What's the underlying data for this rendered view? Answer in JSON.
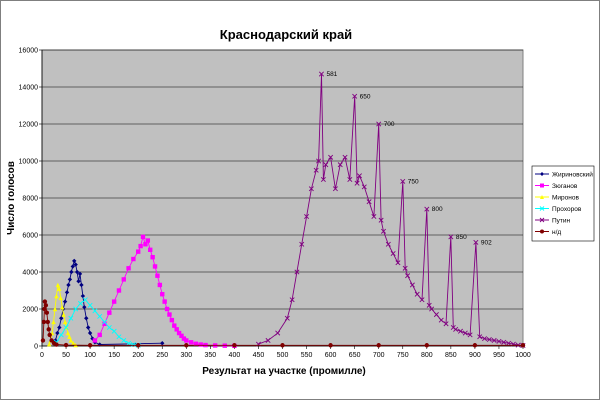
{
  "chart_data": {
    "type": "line",
    "title": "Краснодарский край",
    "xlabel": "Результат на участке (промилле)",
    "ylabel": "Число голосов",
    "xlim": [
      0,
      1000
    ],
    "ylim": [
      0,
      16000
    ],
    "x_ticks": [
      0,
      50,
      100,
      150,
      200,
      250,
      300,
      350,
      400,
      450,
      500,
      550,
      600,
      650,
      700,
      750,
      800,
      850,
      900,
      950,
      1000
    ],
    "y_ticks": [
      0,
      2000,
      4000,
      6000,
      8000,
      10000,
      12000,
      14000,
      16000
    ],
    "grid": "horizontal",
    "background_color": "#c0c0c0",
    "legend_position": "right",
    "series": [
      {
        "name": "Жириновский",
        "color": "#000080",
        "marker": "diamond",
        "points": [
          [
            28,
            300
          ],
          [
            32,
            700
          ],
          [
            36,
            1000
          ],
          [
            40,
            1500
          ],
          [
            44,
            2000
          ],
          [
            48,
            2400
          ],
          [
            52,
            2900
          ],
          [
            55,
            3300
          ],
          [
            58,
            3600
          ],
          [
            61,
            4000
          ],
          [
            64,
            4300
          ],
          [
            67,
            4600
          ],
          [
            70,
            4400
          ],
          [
            73,
            4000
          ],
          [
            76,
            3500
          ],
          [
            79,
            3900
          ],
          [
            82,
            3300
          ],
          [
            85,
            2700
          ],
          [
            88,
            2100
          ],
          [
            92,
            1500
          ],
          [
            96,
            1000
          ],
          [
            100,
            700
          ],
          [
            105,
            400
          ],
          [
            110,
            200
          ],
          [
            120,
            80
          ],
          [
            250,
            150
          ]
        ]
      },
      {
        "name": "Зюганов",
        "color": "#ff00ff",
        "marker": "square",
        "points": [
          [
            110,
            300
          ],
          [
            120,
            600
          ],
          [
            130,
            1200
          ],
          [
            140,
            1800
          ],
          [
            150,
            2400
          ],
          [
            160,
            3000
          ],
          [
            170,
            3600
          ],
          [
            180,
            4200
          ],
          [
            190,
            4700
          ],
          [
            200,
            5100
          ],
          [
            205,
            5400
          ],
          [
            210,
            5900
          ],
          [
            215,
            5500
          ],
          [
            220,
            5700
          ],
          [
            225,
            5200
          ],
          [
            230,
            4800
          ],
          [
            235,
            4300
          ],
          [
            240,
            3800
          ],
          [
            245,
            3300
          ],
          [
            250,
            2800
          ],
          [
            255,
            2400
          ],
          [
            260,
            2000
          ],
          [
            265,
            1700
          ],
          [
            270,
            1400
          ],
          [
            275,
            1100
          ],
          [
            280,
            900
          ],
          [
            285,
            700
          ],
          [
            290,
            550
          ],
          [
            295,
            400
          ],
          [
            300,
            300
          ],
          [
            310,
            200
          ],
          [
            320,
            120
          ],
          [
            330,
            80
          ],
          [
            340,
            50
          ],
          [
            360,
            30
          ],
          [
            380,
            20
          ],
          [
            400,
            10
          ]
        ]
      },
      {
        "name": "Миронов",
        "color": "#ffff00",
        "marker": "triangle",
        "points": [
          [
            15,
            100
          ],
          [
            18,
            300
          ],
          [
            21,
            700
          ],
          [
            24,
            1300
          ],
          [
            27,
            2000
          ],
          [
            30,
            2700
          ],
          [
            33,
            3300
          ],
          [
            36,
            3100
          ],
          [
            39,
            2600
          ],
          [
            42,
            2100
          ],
          [
            45,
            1700
          ],
          [
            48,
            1300
          ],
          [
            51,
            1000
          ],
          [
            54,
            700
          ],
          [
            57,
            500
          ],
          [
            60,
            300
          ],
          [
            65,
            150
          ],
          [
            70,
            50
          ]
        ]
      },
      {
        "name": "Прохоров",
        "color": "#00ffff",
        "marker": "x",
        "points": [
          [
            30,
            200
          ],
          [
            40,
            600
          ],
          [
            50,
            1000
          ],
          [
            60,
            1500
          ],
          [
            70,
            2000
          ],
          [
            80,
            2300
          ],
          [
            90,
            2500
          ],
          [
            100,
            2200
          ],
          [
            110,
            1900
          ],
          [
            120,
            1600
          ],
          [
            130,
            1300
          ],
          [
            140,
            1000
          ],
          [
            150,
            800
          ],
          [
            160,
            500
          ],
          [
            170,
            300
          ],
          [
            180,
            150
          ],
          [
            190,
            80
          ],
          [
            200,
            40
          ]
        ]
      },
      {
        "name": "Путин",
        "color": "#800080",
        "marker": "x",
        "points": [
          [
            450,
            100
          ],
          [
            470,
            300
          ],
          [
            490,
            700
          ],
          [
            510,
            1500
          ],
          [
            520,
            2500
          ],
          [
            530,
            4000
          ],
          [
            540,
            5500
          ],
          [
            550,
            7000
          ],
          [
            560,
            8500
          ],
          [
            570,
            9500
          ],
          [
            575,
            10000
          ],
          [
            581,
            14700
          ],
          [
            585,
            9000
          ],
          [
            590,
            9800
          ],
          [
            600,
            10200
          ],
          [
            610,
            8500
          ],
          [
            620,
            9800
          ],
          [
            630,
            10200
          ],
          [
            640,
            9000
          ],
          [
            650,
            13500
          ],
          [
            655,
            8800
          ],
          [
            660,
            9200
          ],
          [
            670,
            8600
          ],
          [
            680,
            7800
          ],
          [
            690,
            7000
          ],
          [
            700,
            12000
          ],
          [
            705,
            6800
          ],
          [
            710,
            6200
          ],
          [
            720,
            5500
          ],
          [
            730,
            5000
          ],
          [
            740,
            4500
          ],
          [
            750,
            8900
          ],
          [
            755,
            4200
          ],
          [
            760,
            3800
          ],
          [
            770,
            3300
          ],
          [
            780,
            2800
          ],
          [
            790,
            2500
          ],
          [
            800,
            7400
          ],
          [
            805,
            2200
          ],
          [
            810,
            2000
          ],
          [
            820,
            1700
          ],
          [
            830,
            1400
          ],
          [
            840,
            1200
          ],
          [
            850,
            5900
          ],
          [
            855,
            1000
          ],
          [
            860,
            900
          ],
          [
            870,
            800
          ],
          [
            880,
            700
          ],
          [
            890,
            600
          ],
          [
            902,
            5600
          ],
          [
            910,
            500
          ],
          [
            920,
            400
          ],
          [
            930,
            350
          ],
          [
            940,
            300
          ],
          [
            950,
            250
          ],
          [
            960,
            200
          ],
          [
            970,
            150
          ],
          [
            980,
            100
          ],
          [
            990,
            50
          ],
          [
            1000,
            30
          ]
        ]
      },
      {
        "name": "н/д",
        "color": "#800000",
        "marker": "circle",
        "points": [
          [
            2,
            300
          ],
          [
            4,
            1300
          ],
          [
            5,
            2000
          ],
          [
            6,
            2400
          ],
          [
            8,
            2200
          ],
          [
            10,
            1800
          ],
          [
            12,
            1300
          ],
          [
            14,
            900
          ],
          [
            16,
            600
          ],
          [
            20,
            300
          ],
          [
            25,
            150
          ],
          [
            30,
            80
          ],
          [
            50,
            50
          ],
          [
            100,
            40
          ],
          [
            200,
            40
          ],
          [
            300,
            40
          ],
          [
            400,
            40
          ],
          [
            500,
            40
          ],
          [
            600,
            40
          ],
          [
            700,
            40
          ],
          [
            800,
            40
          ],
          [
            900,
            40
          ],
          [
            1000,
            40
          ]
        ]
      }
    ],
    "annotations": [
      {
        "x": 581,
        "y": 14700,
        "text": "581"
      },
      {
        "x": 650,
        "y": 13500,
        "text": "650"
      },
      {
        "x": 700,
        "y": 12000,
        "text": "700"
      },
      {
        "x": 750,
        "y": 8900,
        "text": "750"
      },
      {
        "x": 800,
        "y": 7400,
        "text": "800"
      },
      {
        "x": 850,
        "y": 5900,
        "text": "850"
      },
      {
        "x": 902,
        "y": 5600,
        "text": "902"
      }
    ]
  }
}
